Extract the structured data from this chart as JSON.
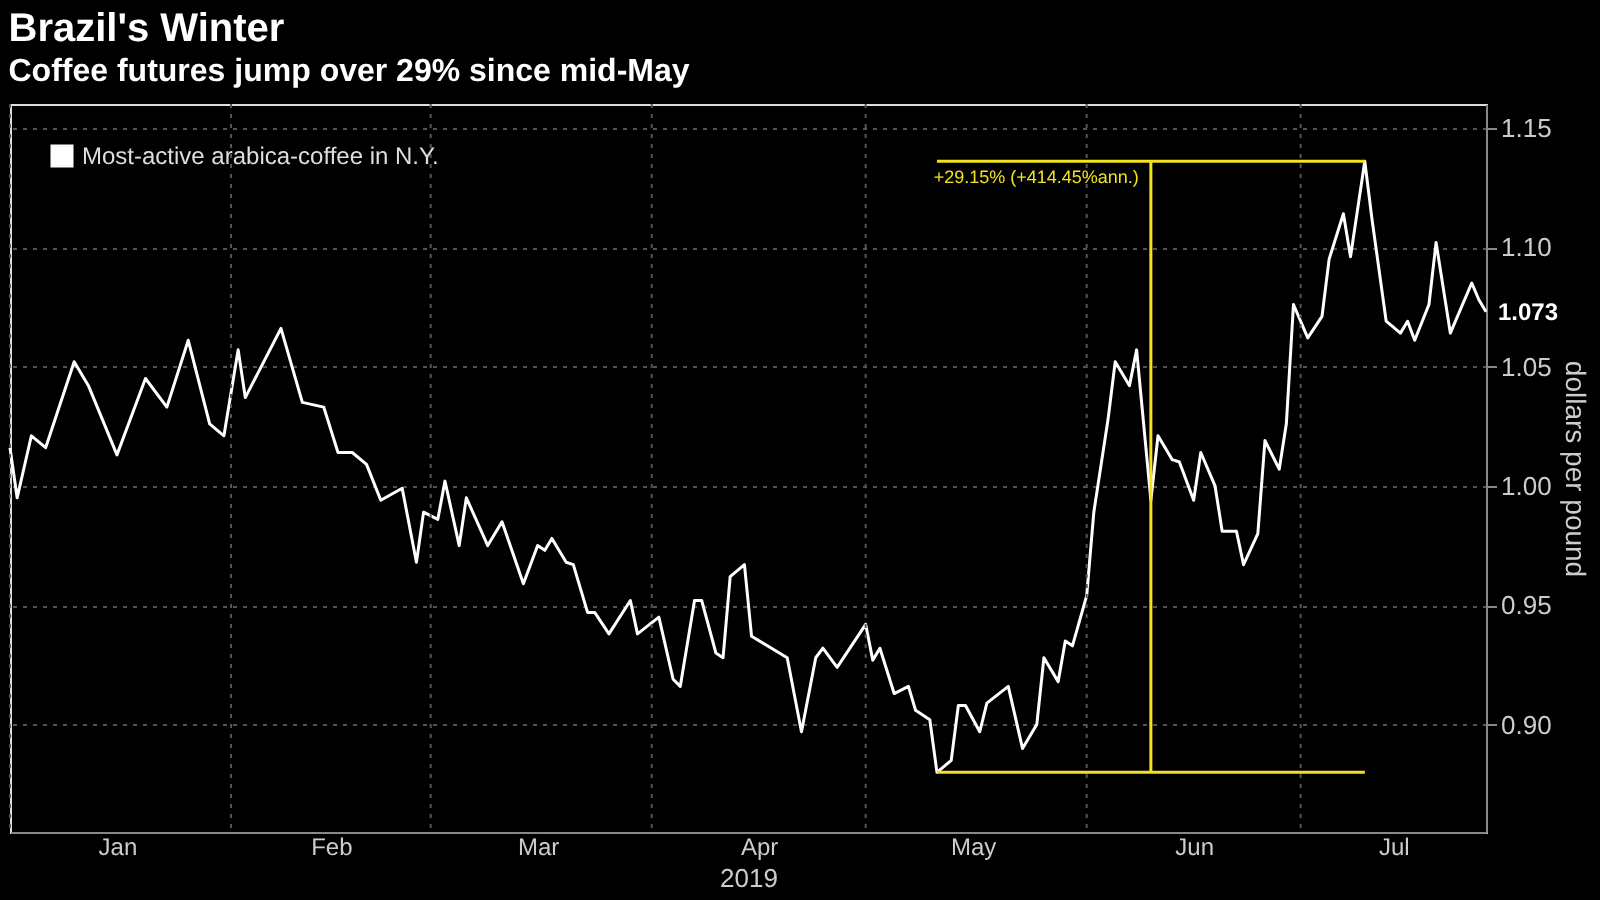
{
  "chart_data": {
    "type": "line",
    "title": "Brazil's Winter",
    "subtitle": "Coffee futures jump over 29% since mid-May",
    "xlabel": "2019",
    "ylabel": "dollars per pound",
    "series": [
      {
        "name": "Most-active arabica-coffee in N.Y.",
        "color": "#ffffff",
        "x": [
          "2019-01-01",
          "2019-01-02",
          "2019-01-04",
          "2019-01-06",
          "2019-01-10",
          "2019-01-12",
          "2019-01-16",
          "2019-01-18",
          "2019-01-20",
          "2019-01-23",
          "2019-01-26",
          "2019-01-29",
          "2019-01-31",
          "2019-02-02",
          "2019-02-03",
          "2019-02-08",
          "2019-02-11",
          "2019-02-14",
          "2019-02-16",
          "2019-02-18",
          "2019-02-20",
          "2019-02-22",
          "2019-02-25",
          "2019-02-27",
          "2019-02-28",
          "2019-03-02",
          "2019-03-03",
          "2019-03-05",
          "2019-03-06",
          "2019-03-09",
          "2019-03-11",
          "2019-03-14",
          "2019-03-16",
          "2019-03-17",
          "2019-03-18",
          "2019-03-20",
          "2019-03-21",
          "2019-03-23",
          "2019-03-24",
          "2019-03-26",
          "2019-03-29",
          "2019-03-30",
          "2019-04-02",
          "2019-04-04",
          "2019-04-05",
          "2019-04-07",
          "2019-04-08",
          "2019-04-10",
          "2019-04-11",
          "2019-04-12",
          "2019-04-14",
          "2019-04-15",
          "2019-04-20",
          "2019-04-22",
          "2019-04-24",
          "2019-04-25",
          "2019-04-27",
          "2019-05-01",
          "2019-05-02",
          "2019-05-03",
          "2019-05-05",
          "2019-05-07",
          "2019-05-08",
          "2019-05-10",
          "2019-05-11",
          "2019-05-13",
          "2019-05-14",
          "2019-05-15",
          "2019-05-17",
          "2019-05-18",
          "2019-05-21",
          "2019-05-23",
          "2019-05-25",
          "2019-05-26",
          "2019-05-28",
          "2019-05-29",
          "2019-05-30",
          "2019-06-01",
          "2019-06-02",
          "2019-06-04",
          "2019-06-05",
          "2019-06-07",
          "2019-06-08",
          "2019-06-10",
          "2019-06-11",
          "2019-06-13",
          "2019-06-14",
          "2019-06-16",
          "2019-06-17",
          "2019-06-19",
          "2019-06-20",
          "2019-06-22",
          "2019-06-23",
          "2019-06-25",
          "2019-06-26",
          "2019-06-28",
          "2019-06-29",
          "2019-06-30",
          "2019-07-02",
          "2019-07-04",
          "2019-07-05",
          "2019-07-07",
          "2019-07-08",
          "2019-07-10",
          "2019-07-11",
          "2019-07-13",
          "2019-07-15",
          "2019-07-16",
          "2019-07-17",
          "2019-07-19",
          "2019-07-20",
          "2019-07-22",
          "2019-07-23",
          "2019-07-25",
          "2019-07-26",
          "2019-07-27"
        ],
        "values": [
          1.016,
          0.995,
          1.021,
          1.016,
          1.052,
          1.042,
          1.013,
          1.029,
          1.045,
          1.033,
          1.061,
          1.026,
          1.021,
          1.057,
          1.037,
          1.066,
          1.035,
          1.033,
          1.014,
          1.014,
          1.009,
          0.994,
          0.999,
          0.968,
          0.989,
          0.986,
          1.002,
          0.975,
          0.995,
          0.975,
          0.985,
          0.959,
          0.975,
          0.973,
          0.978,
          0.968,
          0.967,
          0.947,
          0.947,
          0.938,
          0.952,
          0.938,
          0.945,
          0.919,
          0.916,
          0.952,
          0.952,
          0.93,
          0.928,
          0.962,
          0.967,
          0.937,
          0.928,
          0.897,
          0.928,
          0.932,
          0.924,
          0.942,
          0.927,
          0.932,
          0.913,
          0.916,
          0.906,
          0.902,
          0.88,
          0.885,
          0.908,
          0.908,
          0.897,
          0.909,
          0.916,
          0.89,
          0.9,
          0.928,
          0.918,
          0.935,
          0.933,
          0.954,
          0.989,
          1.028,
          1.052,
          1.042,
          1.057,
          0.994,
          1.021,
          1.011,
          1.01,
          0.994,
          1.014,
          1.0,
          0.981,
          0.981,
          0.967,
          0.98,
          1.019,
          1.007,
          1.026,
          1.076,
          1.062,
          1.071,
          1.095,
          1.114,
          1.096,
          1.136,
          1.112,
          1.069,
          1.064,
          1.069,
          1.061,
          1.076,
          1.102,
          1.064,
          1.071,
          1.085,
          1.078,
          1.073
        ]
      },
      {
        "type": "line",
        "color": "#f2e21f",
        "x": [
          "2019-05-11",
          "2019-07-10"
        ],
        "values": [
          0.88,
          0.88
        ]
      },
      {
        "type": "line",
        "color": "#f2e21f",
        "x": [
          "2019-05-11",
          "2019-07-10"
        ],
        "values": [
          1.136,
          1.136
        ]
      },
      {
        "type": "line",
        "color": "#f2e21f",
        "x": [
          "2019-06-10",
          "2019-06-10"
        ],
        "values": [
          0.88,
          1.136
        ]
      }
    ],
    "annotations": [
      {
        "text": "+29.15% (+414.45%ann.)",
        "x": "2019-06-10",
        "y": 1.136
      },
      {
        "text": "1.073",
        "x": "2019-07-27",
        "y": 1.073
      }
    ],
    "xlim": [
      "2019-01-01",
      "2019-07-27"
    ],
    "xticks": [
      {
        "value": "2019-01-01",
        "label": null
      },
      {
        "value": "2019-01-16",
        "label": "Jan"
      },
      {
        "value": "2019-02-01",
        "label": null
      },
      {
        "value": "2019-02-15",
        "label": "Feb"
      },
      {
        "value": "2019-03-01",
        "label": null
      },
      {
        "value": "2019-03-16",
        "label": "Mar"
      },
      {
        "value": "2019-04-01",
        "label": null
      },
      {
        "value": "2019-04-16",
        "label": "Apr"
      },
      {
        "value": "2019-05-01",
        "label": null
      },
      {
        "value": "2019-05-16",
        "label": "May"
      },
      {
        "value": "2019-06-01",
        "label": null
      },
      {
        "value": "2019-06-16",
        "label": "Jun"
      },
      {
        "value": "2019-07-01",
        "label": null
      },
      {
        "value": "2019-07-14",
        "label": "Jul"
      }
    ],
    "ylim": [
      0.855,
      1.16
    ],
    "yticks": [
      {
        "value": 0.9,
        "label": "0.90"
      },
      {
        "value": 0.95,
        "label": "0.95"
      },
      {
        "value": 1.0,
        "label": "1.00"
      },
      {
        "value": 1.05,
        "label": "1.05"
      },
      {
        "value": 1.1,
        "label": "1.10"
      },
      {
        "value": 1.15,
        "label": "1.15"
      }
    ],
    "grid": true,
    "legend": "top left",
    "marker": "none",
    "line_style": "solid"
  }
}
